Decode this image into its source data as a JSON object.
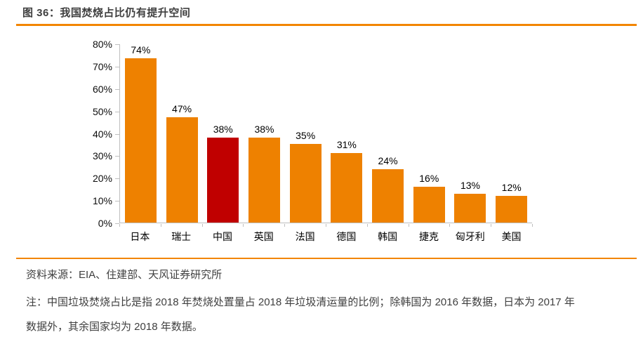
{
  "title": "图 36：我国焚烧占比仍有提升空间",
  "colors": {
    "accent_orange": "#f28500",
    "bar_orange": "#ee8100",
    "bar_highlight_red": "#c00000",
    "axis_gray": "#bfbfbf",
    "title_text": "#3f3f3f",
    "body_text": "#404040"
  },
  "chart_data": {
    "type": "bar",
    "title": "",
    "xlabel": "",
    "ylabel": "",
    "categories": [
      "日本",
      "瑞士",
      "中国",
      "英国",
      "法国",
      "德国",
      "韩国",
      "捷克",
      "匈牙利",
      "美国"
    ],
    "values": [
      74,
      47,
      38,
      38,
      35,
      31,
      24,
      16,
      13,
      12
    ],
    "data_labels": [
      "74%",
      "47%",
      "38%",
      "38%",
      "35%",
      "31%",
      "24%",
      "16%",
      "13%",
      "12%"
    ],
    "highlight_index": 2,
    "highlight_category": "中国",
    "y_tick_labels": [
      "80%",
      "70%",
      "60%",
      "50%",
      "40%",
      "30%",
      "20%",
      "10%",
      "0%"
    ],
    "ylim": [
      0,
      80
    ],
    "grid": false,
    "legend": false
  },
  "footer": {
    "source_line": "资料来源：EIA、住建部、天风证券研究所",
    "note_line1": "注：中国垃圾焚烧占比是指 2018 年焚烧处置量占 2018 年垃圾清运量的比例；除韩国为 2016 年数据，日本为 2017 年",
    "note_line2": "数据外，其余国家均为 2018 年数据。"
  }
}
